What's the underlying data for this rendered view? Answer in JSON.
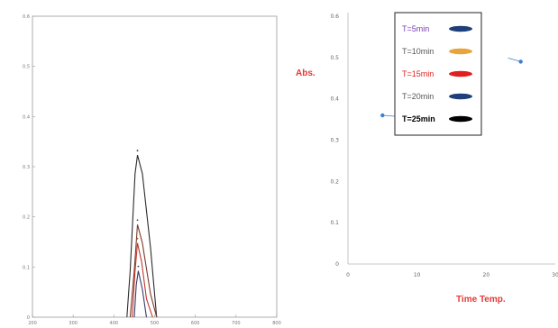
{
  "colors": {
    "red_title": "#e53935",
    "blue_marker": "#3b7ed1"
  },
  "chart_data": [
    {
      "type": "line",
      "title": "",
      "xlabel": "",
      "ylabel": "",
      "xlim": [
        200,
        800
      ],
      "ylim": [
        0,
        0.65
      ],
      "x_ticks": [
        "200",
        "300",
        "400",
        "500",
        "600",
        "700",
        "800"
      ],
      "y_ticks": [
        "0",
        "0.1",
        "0.2",
        "0.3",
        "0.4",
        "0.5",
        "0.6"
      ],
      "series": [
        {
          "color": "#2b2b2b",
          "x": [
            432,
            440,
            452,
            458,
            470,
            490,
            505
          ],
          "y": [
            0.0,
            0.1,
            0.31,
            0.35,
            0.31,
            0.15,
            0.0
          ]
        },
        {
          "color": "#7a3a2a",
          "x": [
            440,
            450,
            458,
            470,
            490,
            505
          ],
          "y": [
            0.0,
            0.1,
            0.2,
            0.16,
            0.05,
            0.0
          ]
        },
        {
          "color": "#c0392b",
          "x": [
            445,
            452,
            458,
            468,
            480,
            495
          ],
          "y": [
            0.0,
            0.1,
            0.16,
            0.12,
            0.04,
            0.0
          ]
        },
        {
          "color": "#3a3a6a",
          "x": [
            450,
            455,
            460,
            470,
            480
          ],
          "y": [
            0.0,
            0.07,
            0.1,
            0.06,
            0.0
          ]
        }
      ]
    },
    {
      "type": "scatter",
      "title": "",
      "xlabel": "Time Temp.",
      "ylabel": "Abs.",
      "xlim": [
        0,
        30
      ],
      "ylim": [
        0,
        0.6
      ],
      "x_ticks": [
        "0",
        "10",
        "20",
        "30"
      ],
      "y_ticks": [
        "0",
        "0.1",
        "0.2",
        "0.3",
        "0.4",
        "0.5",
        "0.6"
      ],
      "grid": false,
      "legend_position": "top-center",
      "legend": [
        {
          "label": "T=5min",
          "color": "#1f3f7a",
          "text_color": "#7a3fb0",
          "bold": false
        },
        {
          "label": "T=10min",
          "color": "#e8a33a",
          "text_color": "#555555",
          "bold": false
        },
        {
          "label": "T=15min",
          "color": "#e02020",
          "text_color": "#e02020",
          "bold": false
        },
        {
          "label": "T=20min",
          "color": "#1f3f7a",
          "text_color": "#555555",
          "bold": false
        },
        {
          "label": "T=25min",
          "color": "#000000",
          "text_color": "#000000",
          "bold": true
        }
      ],
      "points": [
        {
          "x": 5,
          "y": 0.36,
          "color": "#3b7ed1"
        },
        {
          "x": 25,
          "y": 0.49,
          "color": "#3b7ed1"
        }
      ]
    }
  ]
}
